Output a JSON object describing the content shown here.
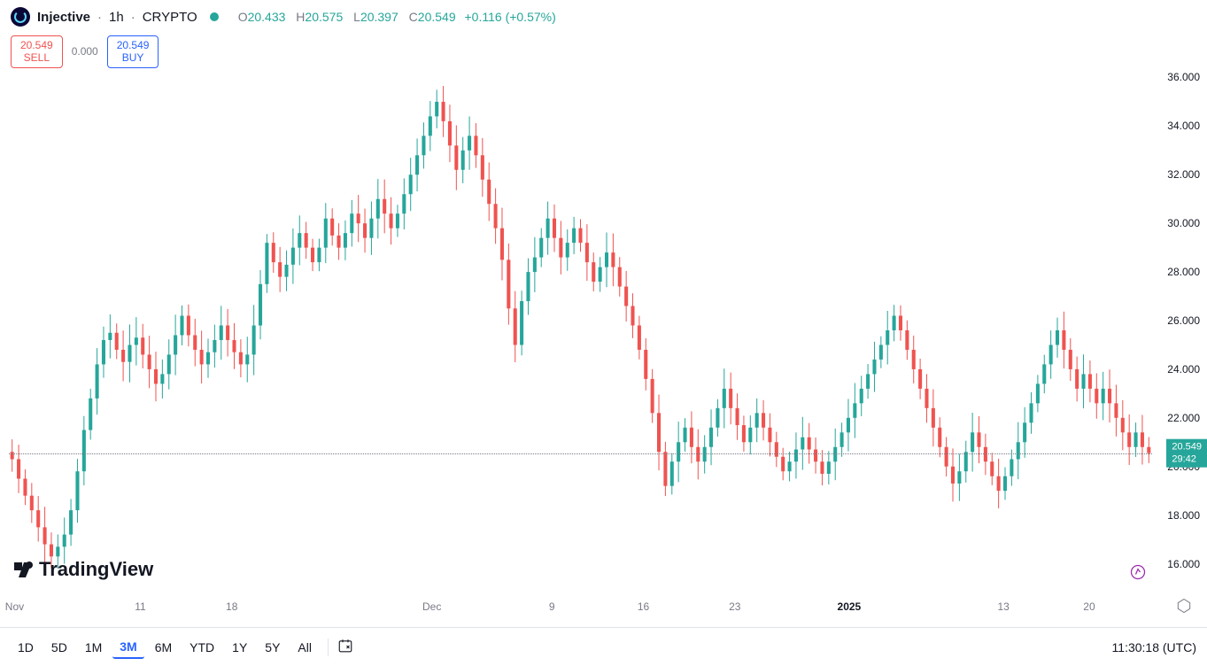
{
  "header": {
    "symbol": "Injective",
    "interval": "1h",
    "exchange": "CRYPTO",
    "open_label": "O",
    "open": "20.433",
    "high_label": "H",
    "high": "20.575",
    "low_label": "L",
    "low": "20.397",
    "close_label": "C",
    "close": "20.549",
    "change": "+0.116",
    "change_pct": "(+0.57%)"
  },
  "trade": {
    "sell_price": "20.549",
    "sell_label": "SELL",
    "buy_price": "20.549",
    "buy_label": "BUY",
    "spread": "0.000"
  },
  "chart": {
    "type": "candlestick",
    "ylim": [
      15,
      37
    ],
    "yticks": [
      16,
      18,
      20,
      22,
      24,
      26,
      28,
      30,
      32,
      34,
      36
    ],
    "ytick_labels": [
      "16.000",
      "18.000",
      "20.000",
      "22.000",
      "24.000",
      "26.000",
      "28.000",
      "30.000",
      "32.000",
      "34.000",
      "36.000"
    ],
    "last_price": 20.549,
    "last_price_label": "20.549",
    "countdown": "29:42",
    "xticks": [
      {
        "pos": 0.005,
        "label": "Nov",
        "bold": false
      },
      {
        "pos": 0.115,
        "label": "11",
        "bold": false
      },
      {
        "pos": 0.195,
        "label": "18",
        "bold": false
      },
      {
        "pos": 0.37,
        "label": "Dec",
        "bold": false
      },
      {
        "pos": 0.475,
        "label": "9",
        "bold": false
      },
      {
        "pos": 0.555,
        "label": "16",
        "bold": false
      },
      {
        "pos": 0.635,
        "label": "23",
        "bold": false
      },
      {
        "pos": 0.735,
        "label": "2025",
        "bold": true
      },
      {
        "pos": 0.87,
        "label": "13",
        "bold": false
      },
      {
        "pos": 0.945,
        "label": "20",
        "bold": false
      }
    ],
    "up_color": "#26a69a",
    "down_color": "#ef5350",
    "background_color": "#ffffff",
    "grid_color": "#f0f3fa",
    "price_line_color": "#787b86",
    "candles": []
  },
  "watermark": "TradingView",
  "timeframes": [
    "1D",
    "5D",
    "1M",
    "3M",
    "6M",
    "YTD",
    "1Y",
    "5Y",
    "All"
  ],
  "active_timeframe": "3M",
  "clock": "11:30:18 (UTC)",
  "colors": {
    "accent_green": "#26a69a",
    "accent_red": "#ef5350",
    "accent_blue": "#2962ff",
    "text": "#131722",
    "muted": "#787b86"
  }
}
